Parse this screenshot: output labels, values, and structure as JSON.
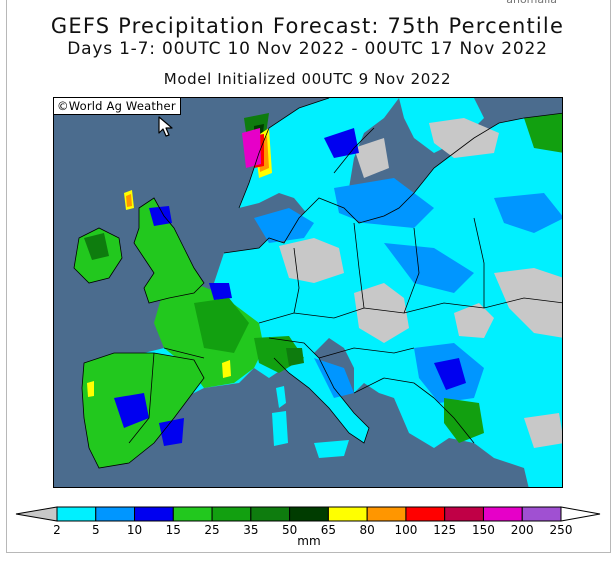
{
  "header": {
    "corner_text": "anomalia",
    "title": "GEFS Precipitation Forecast: 75th Percentile",
    "subtitle": "Days 1-7: 00UTC 10 Nov 2022 - 00UTC 17 Nov 2022",
    "initialized": "Model Initialized 00UTC 9 Nov 2022"
  },
  "map": {
    "watermark": "©World Ag Weather",
    "ocean_color": "#4b6c8e",
    "dry_land_color": "#c8c8c8"
  },
  "legend": {
    "unit": "mm",
    "levels": [
      "2",
      "5",
      "10",
      "15",
      "25",
      "35",
      "50",
      "65",
      "80",
      "100",
      "125",
      "150",
      "200",
      "250"
    ],
    "colors": [
      "#00f0ff",
      "#0096ff",
      "#0000f0",
      "#22c81e",
      "#12a010",
      "#0e7c0e",
      "#003c00",
      "#ffff00",
      "#ff9600",
      "#ff0000",
      "#c00046",
      "#e600c8",
      "#a050d2"
    ],
    "under_color": "#c8c8c8",
    "over_color": "#ffffff"
  }
}
